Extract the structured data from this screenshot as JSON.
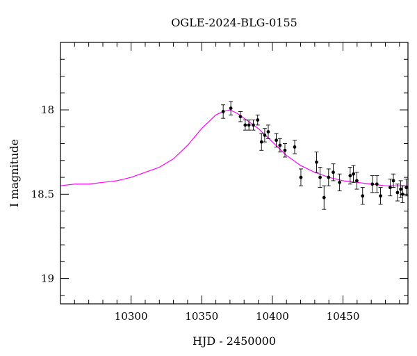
{
  "chart_data": {
    "type": "scatter",
    "title": "OGLE-2024-BLG-0155",
    "xlabel": "HJD - 2450000",
    "ylabel": "I magnitude",
    "xlim": [
      10250,
      10496
    ],
    "ylim": [
      19.15,
      17.6
    ],
    "y_inverted": true,
    "grid": false,
    "xticks": [
      10300,
      10350,
      10400,
      10450
    ],
    "xtick_labels": [
      "10300",
      "10350",
      "10400",
      "10450"
    ],
    "yticks": [
      18,
      18.5,
      19
    ],
    "ytick_labels": [
      "18",
      "18.5",
      "19"
    ],
    "colors": {
      "model": "#ff00ff",
      "points": "#000000",
      "axes": "#000000"
    },
    "series": [
      {
        "type": "scatter",
        "points": [
          {
            "x": 10365.2,
            "y": 18.01,
            "err": 0.04
          },
          {
            "x": 10370.6,
            "y": 17.99,
            "err": 0.04
          },
          {
            "x": 10377.4,
            "y": 18.04,
            "err": 0.03
          },
          {
            "x": 10380.8,
            "y": 18.09,
            "err": 0.03
          },
          {
            "x": 10383.4,
            "y": 18.09,
            "err": 0.03
          },
          {
            "x": 10386.5,
            "y": 18.09,
            "err": 0.03
          },
          {
            "x": 10389.6,
            "y": 18.06,
            "err": 0.03
          },
          {
            "x": 10392.3,
            "y": 18.19,
            "err": 0.05
          },
          {
            "x": 10394.6,
            "y": 18.15,
            "err": 0.04
          },
          {
            "x": 10397.1,
            "y": 18.13,
            "err": 0.04
          },
          {
            "x": 10402.8,
            "y": 18.18,
            "err": 0.04
          },
          {
            "x": 10405.4,
            "y": 18.21,
            "err": 0.04
          },
          {
            "x": 10408.9,
            "y": 18.24,
            "err": 0.04
          },
          {
            "x": 10415.8,
            "y": 18.22,
            "err": 0.04
          },
          {
            "x": 10420.2,
            "y": 18.4,
            "err": 0.05
          },
          {
            "x": 10431.3,
            "y": 18.31,
            "err": 0.06
          },
          {
            "x": 10433.8,
            "y": 18.4,
            "err": 0.06
          },
          {
            "x": 10436.6,
            "y": 18.52,
            "err": 0.07
          },
          {
            "x": 10439.8,
            "y": 18.4,
            "err": 0.05
          },
          {
            "x": 10443.1,
            "y": 18.37,
            "err": 0.05
          },
          {
            "x": 10447.6,
            "y": 18.43,
            "err": 0.05
          },
          {
            "x": 10455.1,
            "y": 18.39,
            "err": 0.05
          },
          {
            "x": 10457.4,
            "y": 18.38,
            "err": 0.05
          },
          {
            "x": 10459.8,
            "y": 18.42,
            "err": 0.05
          },
          {
            "x": 10463.9,
            "y": 18.51,
            "err": 0.05
          },
          {
            "x": 10470.8,
            "y": 18.44,
            "err": 0.05
          },
          {
            "x": 10474.0,
            "y": 18.44,
            "err": 0.05
          },
          {
            "x": 10476.6,
            "y": 18.51,
            "err": 0.05
          },
          {
            "x": 10483.4,
            "y": 18.46,
            "err": 0.05
          },
          {
            "x": 10485.7,
            "y": 18.42,
            "err": 0.04
          },
          {
            "x": 10488.6,
            "y": 18.49,
            "err": 0.05
          },
          {
            "x": 10490.9,
            "y": 18.47,
            "err": 0.05
          },
          {
            "x": 10492.2,
            "y": 18.5,
            "err": 0.05
          },
          {
            "x": 10494.9,
            "y": 18.46,
            "err": 0.05
          }
        ]
      },
      {
        "type": "line",
        "points": [
          {
            "x": 10250,
            "y": 18.45
          },
          {
            "x": 10260,
            "y": 18.44
          },
          {
            "x": 10270,
            "y": 18.44
          },
          {
            "x": 10280,
            "y": 18.43
          },
          {
            "x": 10290,
            "y": 18.42
          },
          {
            "x": 10300,
            "y": 18.4
          },
          {
            "x": 10310,
            "y": 18.37
          },
          {
            "x": 10320,
            "y": 18.34
          },
          {
            "x": 10330,
            "y": 18.29
          },
          {
            "x": 10340,
            "y": 18.21
          },
          {
            "x": 10350,
            "y": 18.11
          },
          {
            "x": 10360,
            "y": 18.03
          },
          {
            "x": 10365,
            "y": 18.01
          },
          {
            "x": 10370,
            "y": 18.0
          },
          {
            "x": 10375,
            "y": 18.02
          },
          {
            "x": 10380,
            "y": 18.05
          },
          {
            "x": 10385,
            "y": 18.08
          },
          {
            "x": 10390,
            "y": 18.11
          },
          {
            "x": 10395,
            "y": 18.15
          },
          {
            "x": 10400,
            "y": 18.19
          },
          {
            "x": 10405,
            "y": 18.23
          },
          {
            "x": 10410,
            "y": 18.27
          },
          {
            "x": 10415,
            "y": 18.3
          },
          {
            "x": 10420,
            "y": 18.33
          },
          {
            "x": 10425,
            "y": 18.35
          },
          {
            "x": 10430,
            "y": 18.37
          },
          {
            "x": 10440,
            "y": 18.4
          },
          {
            "x": 10450,
            "y": 18.42
          },
          {
            "x": 10460,
            "y": 18.43
          },
          {
            "x": 10470,
            "y": 18.44
          },
          {
            "x": 10480,
            "y": 18.45
          },
          {
            "x": 10490,
            "y": 18.45
          },
          {
            "x": 10496,
            "y": 18.45
          }
        ]
      }
    ]
  }
}
